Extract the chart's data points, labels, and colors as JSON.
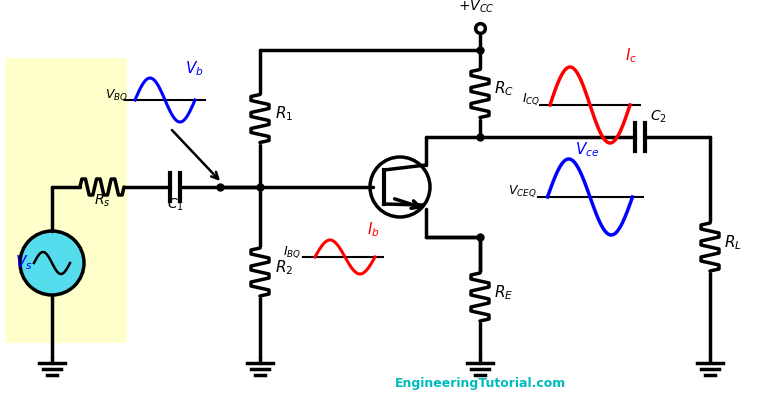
{
  "bg": "#ffffff",
  "yellow_bg": "#ffffcc",
  "vs_color": "#55ddee",
  "website": "EngineeringTutorial.com",
  "website_color": "#00bbbb",
  "figw": 7.59,
  "figh": 4.05,
  "dpi": 100
}
